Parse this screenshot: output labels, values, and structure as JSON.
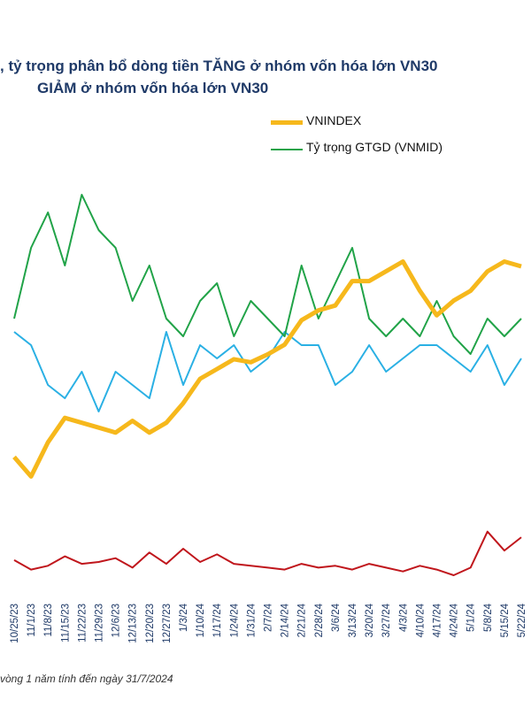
{
  "title": {
    "line1": ", tỷ trọng phân bổ dòng tiền TĂNG ở nhóm vốn hóa lớn VN30",
    "line2": "GIẢM ở nhóm vốn hóa lớn VN30"
  },
  "footer": "vòng 1 năm tính đến ngày 31/7/2024",
  "colors": {
    "vnindex": "#f6b81c",
    "vnmid": "#21a348",
    "blue": "#2ab0e4",
    "red": "#c0161c",
    "text": "#1f3a68"
  },
  "chart_data": {
    "type": "line",
    "title": "",
    "xlabel": "",
    "ylabel": "",
    "x_ticks": [
      "10/25/23",
      "11/1/23",
      "11/8/23",
      "11/15/23",
      "11/22/23",
      "11/29/23",
      "12/6/23",
      "12/13/23",
      "12/20/23",
      "12/27/23",
      "1/3/24",
      "1/10/24",
      "1/17/24",
      "1/24/24",
      "1/31/24",
      "2/7/24",
      "2/14/24",
      "2/21/24",
      "2/28/24",
      "3/6/24",
      "3/13/24",
      "3/20/24",
      "3/27/24",
      "4/3/24",
      "4/10/24",
      "4/17/24",
      "4/24/24",
      "5/1/24",
      "5/8/24",
      "5/15/24",
      "5/22/24"
    ],
    "legend": {
      "placement": "top-right",
      "entries": [
        "VNINDEX",
        "Tỷ trọng GTGD (VNMID)"
      ]
    },
    "series": [
      {
        "name": "VNINDEX",
        "color": "#f6b81c",
        "values": [
          1075,
          1055,
          1090,
          1115,
          1110,
          1105,
          1100,
          1112,
          1100,
          1110,
          1130,
          1155,
          1165,
          1175,
          1172,
          1180,
          1190,
          1215,
          1225,
          1230,
          1255,
          1255,
          1265,
          1275,
          1245,
          1220,
          1235,
          1245,
          1265,
          1275,
          1270
        ]
      },
      {
        "name": "Tỷ trọng GTGD (VNMID)",
        "color": "#21a348",
        "values": [
          30,
          34,
          36,
          33,
          37,
          35,
          34,
          31,
          33,
          30,
          29,
          31,
          32,
          29,
          31,
          30,
          29,
          33,
          30,
          32,
          34,
          30,
          29,
          30,
          29,
          31,
          29,
          28,
          30,
          29,
          30
        ]
      },
      {
        "name": "",
        "color": "#2ab0e4",
        "values": [
          29,
          28,
          25,
          24,
          26,
          23,
          26,
          25,
          24,
          29,
          25,
          28,
          27,
          28,
          26,
          27,
          29,
          28,
          28,
          25,
          26,
          28,
          26,
          27,
          28,
          28,
          27,
          26,
          28,
          25,
          27
        ]
      },
      {
        "name": "",
        "color": "#c0161c",
        "values": [
          5,
          4.5,
          4.7,
          5.2,
          4.8,
          4.9,
          5.1,
          4.6,
          5.4,
          4.8,
          5.6,
          4.9,
          5.3,
          4.8,
          4.7,
          4.6,
          4.5,
          4.8,
          4.6,
          4.7,
          4.5,
          4.8,
          4.6,
          4.4,
          4.7,
          4.5,
          4.2,
          4.6,
          6.5,
          5.5,
          6.2
        ]
      }
    ]
  }
}
